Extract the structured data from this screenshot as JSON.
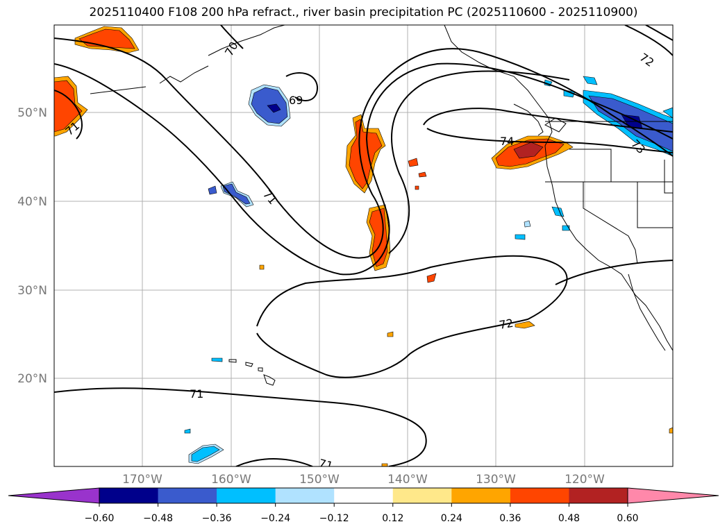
{
  "title": "2025110400 F108 200 hPa refract., river basin precipitation PC (2025110600 - 2025110900)",
  "map": {
    "lat_labels": [
      "50°N",
      "40°N",
      "30°N",
      "20°N"
    ],
    "lon_labels": [
      "170°W",
      "160°W",
      "150°W",
      "140°W",
      "130°W",
      "120°W"
    ],
    "contour_labels": [
      "70",
      "71",
      "69",
      "71",
      "74",
      "72",
      "73",
      "72",
      "71",
      "71"
    ]
  },
  "colorbar": {
    "tick_labels": [
      "−0.60",
      "−0.48",
      "−0.36",
      "−0.24",
      "−0.12",
      "0.12",
      "0.24",
      "0.36",
      "0.48",
      "0.60"
    ],
    "colors": [
      "#9933cc",
      "#00008b",
      "#3a5bcd",
      "#00bfff",
      "#b0e2ff",
      "#ffffff",
      "#ffe88a",
      "#ffa500",
      "#ff4500",
      "#b22222",
      "#ff88aa"
    ]
  }
}
